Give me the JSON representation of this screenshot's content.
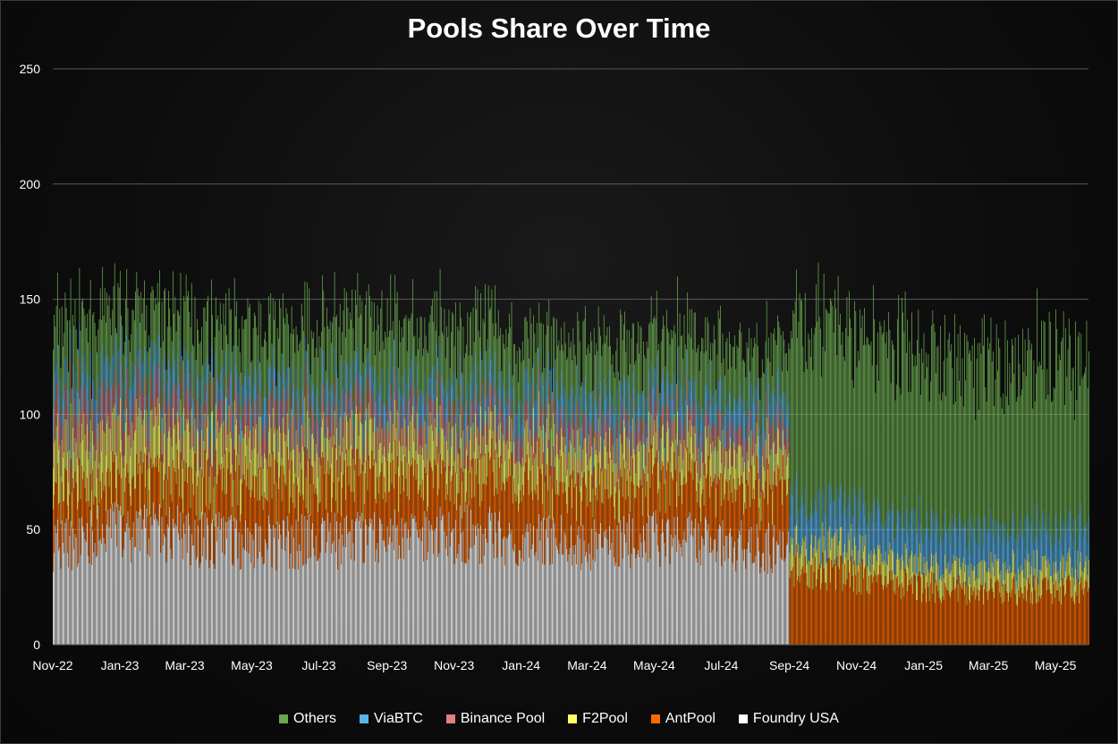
{
  "chart_data": {
    "type": "bar",
    "stacked": true,
    "title": "Pools Share Over Time",
    "xlabel": "",
    "ylabel": "",
    "ylim": [
      0,
      250
    ],
    "yticks": [
      0,
      50,
      100,
      150,
      200,
      250
    ],
    "xlim": [
      "2022-11-01",
      "2025-05-31"
    ],
    "x_tick_labels": [
      "Nov-22",
      "Jan-23",
      "Mar-23",
      "May-23",
      "Jul-23",
      "Sep-23",
      "Nov-23",
      "Jan-24",
      "Mar-24",
      "May-24",
      "Jul-24",
      "Sep-24",
      "Nov-24",
      "Jan-25",
      "Mar-25",
      "May-25"
    ],
    "x_tick_dates": [
      "2022-11-01",
      "2023-01-01",
      "2023-03-01",
      "2023-05-01",
      "2023-07-01",
      "2023-09-01",
      "2023-11-01",
      "2024-01-01",
      "2024-03-01",
      "2024-05-01",
      "2024-07-01",
      "2024-09-01",
      "2024-11-01",
      "2025-01-01",
      "2025-03-01",
      "2025-05-01"
    ],
    "grid": true,
    "legend_position": "bottom",
    "series": [
      {
        "name": "Foundry USA",
        "color": "#ffffff",
        "dates": [
          "2022-11-15",
          "2023-01-01",
          "2023-03-01",
          "2023-05-01",
          "2023-07-01",
          "2023-09-01",
          "2023-11-01",
          "2024-01-01",
          "2024-03-01",
          "2024-05-01",
          "2024-07-01",
          "2024-08-31",
          "2024-09-01",
          "2025-05-31"
        ],
        "values": [
          44,
          50,
          47,
          44,
          45,
          46,
          48,
          46,
          44,
          46,
          44,
          42,
          0,
          0
        ]
      },
      {
        "name": "AntPool",
        "color": "#ff6a00",
        "dates": [
          "2022-11-15",
          "2023-01-01",
          "2023-03-01",
          "2023-05-01",
          "2023-07-01",
          "2023-09-01",
          "2023-11-01",
          "2024-01-01",
          "2024-03-01",
          "2024-05-01",
          "2024-07-01",
          "2024-08-31",
          "2024-09-01",
          "2024-11-01",
          "2025-01-01",
          "2025-03-01",
          "2025-05-31"
        ],
        "values": [
          22,
          20,
          24,
          25,
          25,
          24,
          25,
          27,
          25,
          25,
          23,
          28,
          35,
          30,
          25,
          23,
          24
        ]
      },
      {
        "name": "F2Pool",
        "color": "#ffff66",
        "dates": [
          "2022-11-15",
          "2023-01-01",
          "2023-03-01",
          "2023-05-01",
          "2023-07-01",
          "2023-09-01",
          "2023-11-01",
          "2024-01-01",
          "2024-03-01",
          "2024-05-01",
          "2024-07-01",
          "2024-08-31",
          "2024-09-01",
          "2024-11-01",
          "2025-01-01",
          "2025-03-01",
          "2025-05-31"
        ],
        "values": [
          20,
          21,
          21,
          18,
          18,
          18,
          17,
          16,
          16,
          15,
          15,
          14,
          12,
          11,
          10,
          10,
          10
        ]
      },
      {
        "name": "Binance Pool",
        "color": "#e08080",
        "dates": [
          "2022-11-15",
          "2023-01-01",
          "2023-03-01",
          "2023-05-01",
          "2023-07-01",
          "2023-09-01",
          "2023-11-01",
          "2024-01-01",
          "2024-03-01",
          "2024-05-01",
          "2024-07-01",
          "2024-08-31",
          "2024-09-01",
          "2025-05-31"
        ],
        "values": [
          15,
          14,
          13,
          12,
          12,
          11,
          11,
          10,
          10,
          10,
          10,
          9,
          0,
          0
        ]
      },
      {
        "name": "ViaBTC",
        "color": "#5ab4ea",
        "dates": [
          "2022-11-15",
          "2023-01-01",
          "2023-03-01",
          "2023-05-01",
          "2023-07-01",
          "2023-09-01",
          "2023-11-01",
          "2024-01-01",
          "2024-03-01",
          "2024-05-01",
          "2024-07-01",
          "2024-08-31",
          "2024-09-01",
          "2024-11-01",
          "2025-01-01",
          "2025-03-01",
          "2025-05-31"
        ],
        "values": [
          12,
          13,
          12,
          12,
          12,
          12,
          12,
          12,
          13,
          13,
          13,
          13,
          18,
          18,
          17,
          17,
          17
        ]
      },
      {
        "name": "Others",
        "color": "#6aa84f",
        "dates": [
          "2022-11-15",
          "2023-01-01",
          "2023-03-01",
          "2023-05-01",
          "2023-07-01",
          "2023-09-01",
          "2023-11-01",
          "2024-01-01",
          "2024-03-01",
          "2024-05-01",
          "2024-07-01",
          "2024-08-31",
          "2024-09-01",
          "2024-11-01",
          "2025-01-01",
          "2025-03-01",
          "2025-05-31"
        ],
        "values": [
          25,
          27,
          26,
          25,
          26,
          27,
          26,
          24,
          24,
          25,
          24,
          23,
          80,
          75,
          72,
          73,
          75
        ]
      }
    ],
    "legend_order": [
      "Others",
      "ViaBTC",
      "Binance Pool",
      "F2Pool",
      "AntPool",
      "Foundry USA"
    ]
  },
  "style": {
    "grid_color": "#5a5a5a",
    "text_color": "#ffffff"
  }
}
